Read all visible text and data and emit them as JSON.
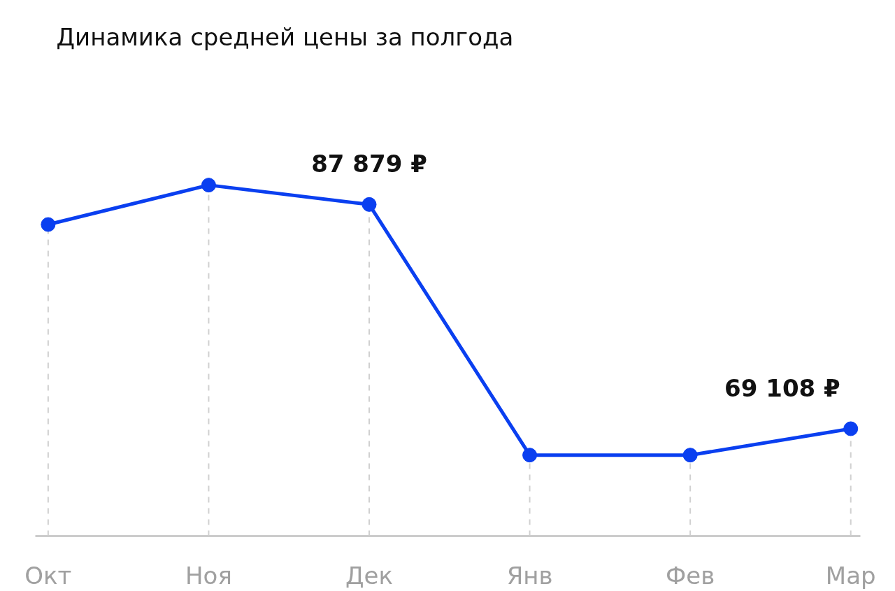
{
  "chart_data": {
    "type": "line",
    "title": "Динамика средней цены за полгода",
    "categories": [
      "Окт",
      "Ноя",
      "Дек",
      "Янв",
      "Фев",
      "Мар"
    ],
    "series": [
      {
        "color": "#0a3ff0",
        "values": [
          86200,
          89500,
          87879,
          66900,
          66900,
          69108
        ],
        "value_labels": [
          null,
          null,
          "87 879 ₽",
          null,
          null,
          "69 108 ₽"
        ]
      }
    ],
    "marker": "circle",
    "line_style": "solid",
    "grid": "x"
  }
}
